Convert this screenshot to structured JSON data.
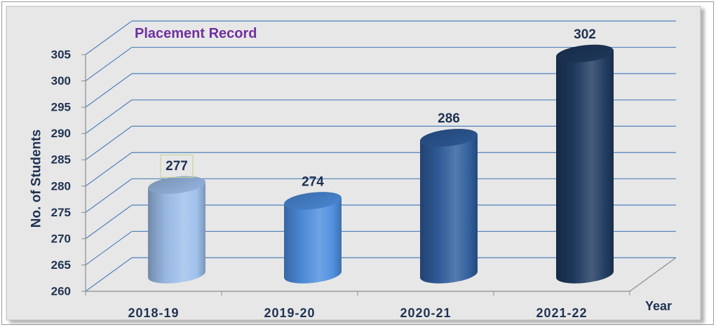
{
  "chart_data": {
    "type": "bar",
    "bar_shape": "cylinder",
    "three_d": true,
    "title": "Placement Record",
    "xlabel": "Year",
    "ylabel": "No. of Students",
    "categories": [
      "2018-19",
      "2019-20",
      "2020-21",
      "2021-22"
    ],
    "values": [
      277,
      274,
      286,
      302
    ],
    "ylim": [
      260,
      305
    ],
    "yticks": [
      260,
      265,
      270,
      275,
      280,
      285,
      290,
      295,
      300,
      305
    ],
    "data_labels": true,
    "boxed_data_label": 0,
    "grid": true,
    "legend": "none",
    "bar_colors": [
      "#9EC0EC",
      "#4E8FDF",
      "#2F5D9C",
      "#1F3A60"
    ]
  },
  "colors": {
    "title": "#7030A0",
    "text": "#1F3252",
    "grid": "#4F81BD",
    "axis": "#8C8C8C",
    "panel": "#E7E7E7",
    "label_box": "#C3D69B"
  }
}
